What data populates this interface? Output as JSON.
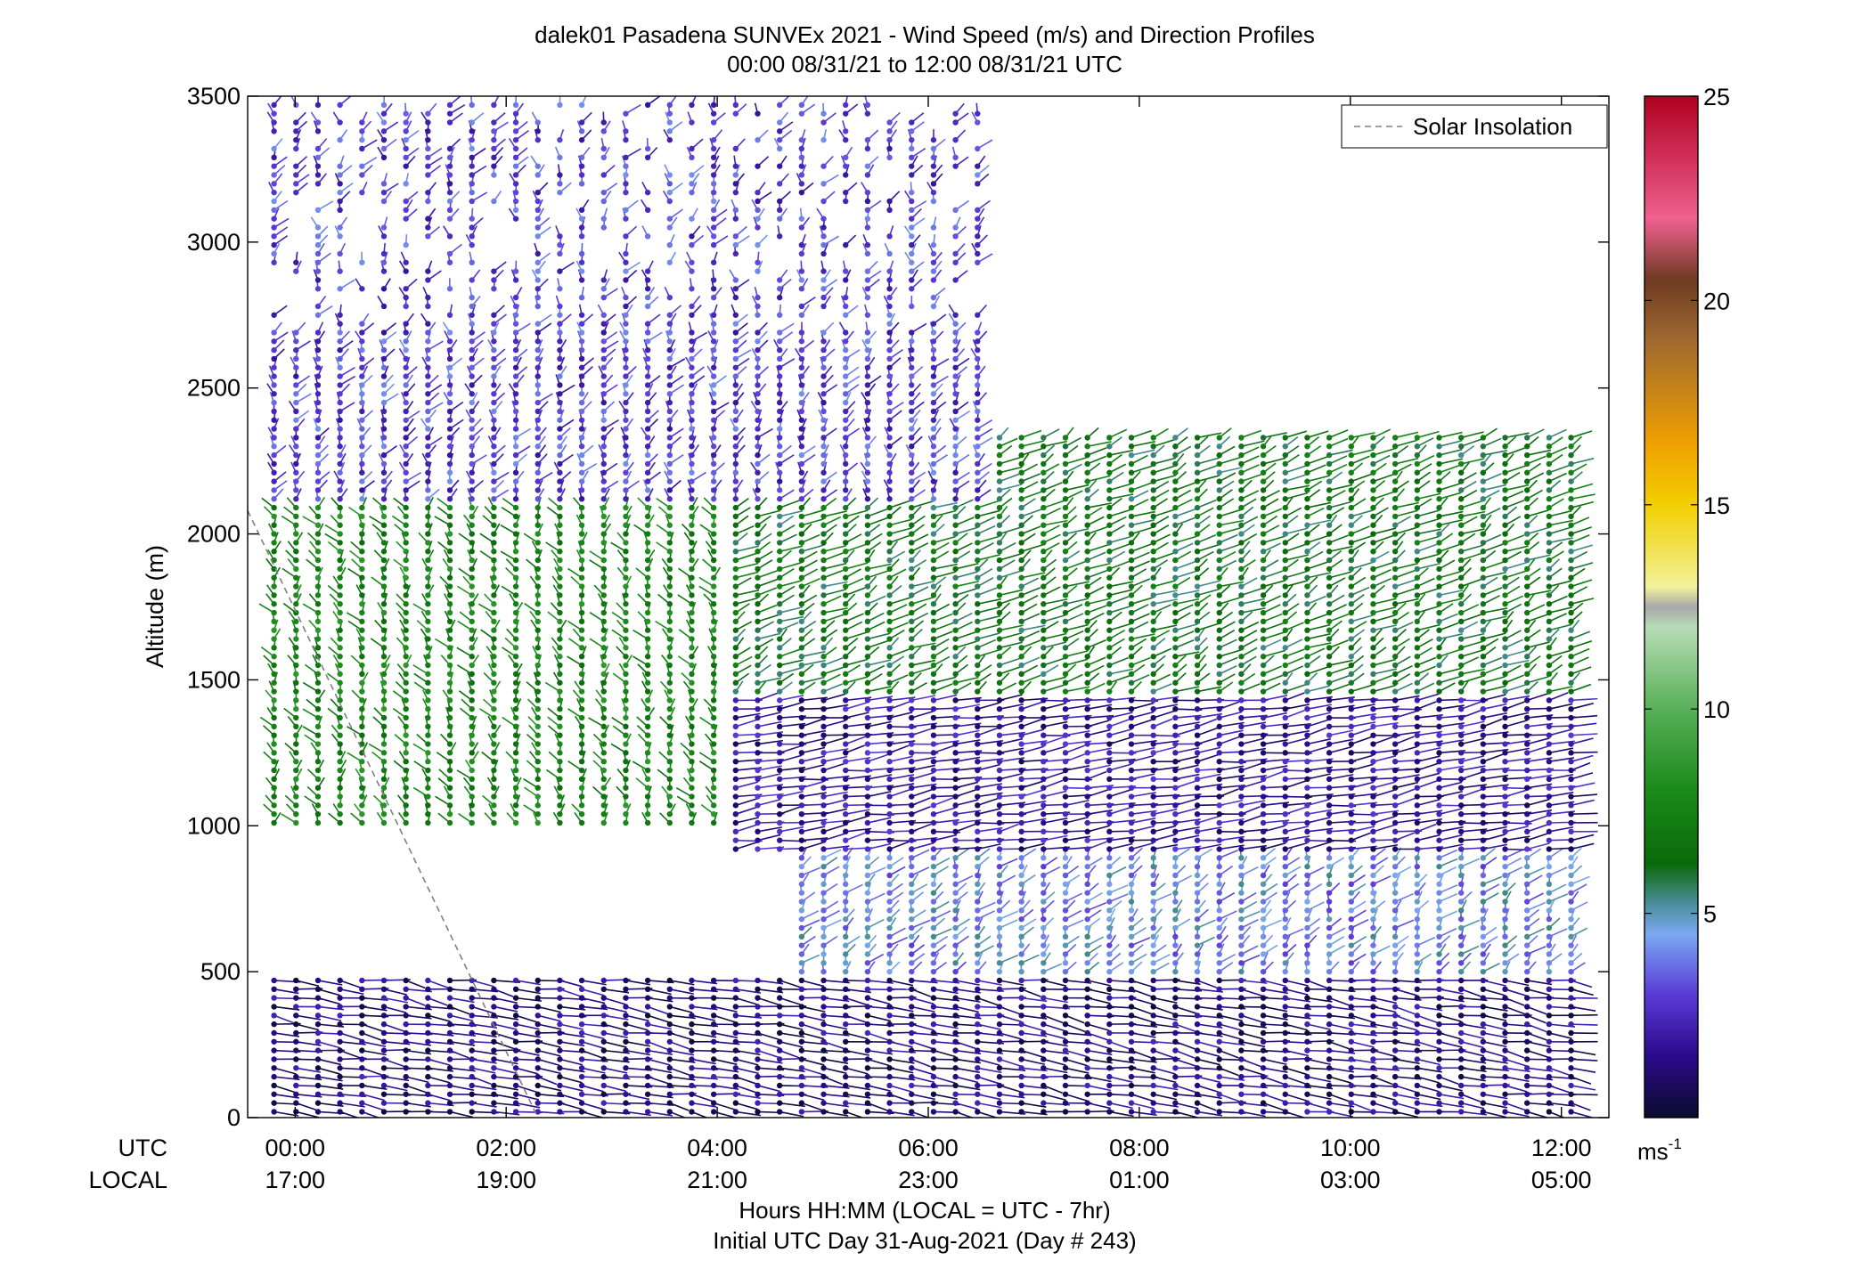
{
  "chart_data": {
    "type": "wind-barb",
    "title": "dalek01 Pasadena SUNVEx 2021 - Wind Speed (m/s) and Direction Profiles",
    "subtitle": "00:00 08/31/21 to 12:00 08/31/21  UTC",
    "ylabel": "Altitude (m)",
    "xlabel": "Hours HH:MM  (LOCAL = UTC - 7hr)",
    "xlabel2": "Initial UTC Day 31-Aug-2021 (Day # 243)",
    "ylim": [
      0,
      3500
    ],
    "xlim_hours_utc": [
      -0.45,
      12.45
    ],
    "y_ticks": [
      0,
      500,
      1000,
      1500,
      2000,
      2500,
      3000,
      3500
    ],
    "x_ticks": [
      {
        "hour": 0,
        "utc": "00:00",
        "local": "17:00"
      },
      {
        "hour": 2,
        "utc": "02:00",
        "local": "19:00"
      },
      {
        "hour": 4,
        "utc": "04:00",
        "local": "21:00"
      },
      {
        "hour": 6,
        "utc": "06:00",
        "local": "23:00"
      },
      {
        "hour": 8,
        "utc": "08:00",
        "local": "01:00"
      },
      {
        "hour": 10,
        "utc": "10:00",
        "local": "03:00"
      },
      {
        "hour": 12,
        "utc": "12:00",
        "local": "05:00"
      }
    ],
    "row_labels": {
      "utc": "UTC",
      "local": "LOCAL"
    },
    "legend": {
      "label": "Solar Insolation",
      "position": "top-right",
      "color": "#808080",
      "style": "dashed"
    },
    "colorbar": {
      "range": [
        0,
        25
      ],
      "ticks": [
        5,
        10,
        15,
        20,
        25
      ],
      "unit_base": "ms",
      "unit_sup": "-1",
      "stops": [
        {
          "v": 0,
          "c": "#0b0b2e"
        },
        {
          "v": 1.5,
          "c": "#2a0a8a"
        },
        {
          "v": 3,
          "c": "#5a3ad6"
        },
        {
          "v": 4.5,
          "c": "#7aa8f0"
        },
        {
          "v": 5.2,
          "c": "#4e8fa0"
        },
        {
          "v": 6.2,
          "c": "#0a6a0a"
        },
        {
          "v": 8,
          "c": "#1a8a1a"
        },
        {
          "v": 10,
          "c": "#58b058"
        },
        {
          "v": 12,
          "c": "#b6dcb6"
        },
        {
          "v": 12.5,
          "c": "#a8a8a8"
        },
        {
          "v": 13,
          "c": "#f2f29a"
        },
        {
          "v": 15,
          "c": "#f2cf00"
        },
        {
          "v": 16.5,
          "c": "#f0a000"
        },
        {
          "v": 19,
          "c": "#a06a30"
        },
        {
          "v": 20.5,
          "c": "#6e3a22"
        },
        {
          "v": 22,
          "c": "#f06090"
        },
        {
          "v": 25,
          "c": "#b00020"
        }
      ]
    },
    "solar_insolation_line": [
      {
        "x": -0.45,
        "y": 2080
      },
      {
        "x": 2.3,
        "y": 0
      }
    ],
    "regions": [
      {
        "layer": "surface-calm",
        "x": [
          -0.2,
          12.3
        ],
        "alt": [
          0,
          480
        ],
        "speed_ms": 1.2,
        "direction_deg": 200
      },
      {
        "layer": "low-level-flow",
        "x": [
          4.8,
          12.3
        ],
        "alt": [
          480,
          900
        ],
        "speed_ms": 4.2,
        "direction_deg": 110
      },
      {
        "layer": "mid-light",
        "x": [
          4.0,
          12.3
        ],
        "alt": [
          900,
          1450
        ],
        "speed_ms": 1.8,
        "direction_deg": 160
      },
      {
        "layer": "marine-layer-top",
        "x": [
          -0.2,
          4.0
        ],
        "alt": [
          1000,
          2100
        ],
        "speed_ms": 7.5,
        "direction_deg": 80
      },
      {
        "layer": "upper-moderate",
        "x": [
          4.0,
          12.3
        ],
        "alt": [
          1450,
          2350
        ],
        "speed_ms": 6.5,
        "direction_deg": 130
      },
      {
        "layer": "upper-light",
        "x": [
          -0.2,
          6.5
        ],
        "alt": [
          2100,
          3500
        ],
        "speed_ms": 3.0,
        "direction_deg": 100
      }
    ]
  }
}
